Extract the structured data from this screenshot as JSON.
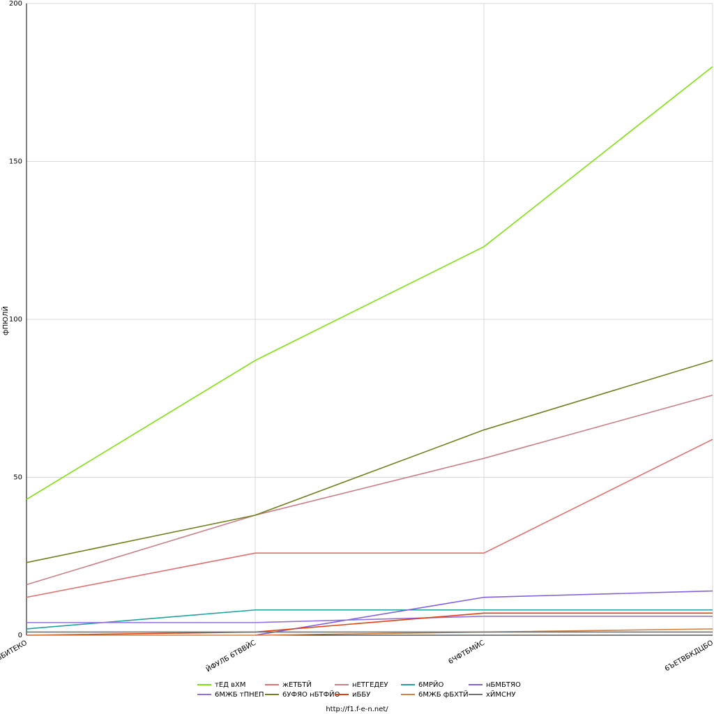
{
  "chart_data": {
    "type": "line",
    "y_label": "фПЮЛЙ",
    "footer": "http://f1.f-e-n.net/",
    "categories": [
      "вБИТЕКО",
      "ЙФУЛБ 6ТВВЙС",
      "6ЧФТБМЙС",
      "6ЪЕТВБКДЦБО"
    ],
    "ylim": [
      0,
      200
    ],
    "yticks": [
      0,
      50,
      100,
      150,
      200
    ],
    "grid": true,
    "series": [
      {
        "name": "тЕД вХМ",
        "color": "#80e010",
        "values": [
          43,
          87,
          123,
          180
        ]
      },
      {
        "name": "жЕТБТЙ",
        "color": "#e07070",
        "values": [
          12,
          26,
          26,
          62
        ]
      },
      {
        "name": "нЕТГЕДЕУ",
        "color": "#c88088",
        "values": [
          16,
          38,
          56,
          76
        ]
      },
      {
        "name": "6МРЙО",
        "color": "#20a0a0",
        "values": [
          2,
          8,
          8,
          8
        ]
      },
      {
        "name": "нБМБТЯО",
        "color": "#8060e0",
        "values": [
          null,
          0,
          12,
          14
        ]
      },
      {
        "name": "6МЖБ тПНЕП",
        "color": "#9070e0",
        "values": [
          4,
          4,
          6,
          6
        ]
      },
      {
        "name": "6УФЯО нБТФЙО",
        "color": "#708020",
        "values": [
          23,
          38,
          65,
          87
        ]
      },
      {
        "name": "иББУ",
        "color": "#e04010",
        "values": [
          0,
          1,
          7,
          7
        ]
      },
      {
        "name": "6МЖБ фБХТЙ",
        "color": "#d08040",
        "values": [
          0,
          0,
          1,
          2
        ]
      },
      {
        "name": "хЙМСНУ",
        "color": "#707070",
        "values": [
          1,
          1,
          1,
          1
        ]
      }
    ]
  }
}
